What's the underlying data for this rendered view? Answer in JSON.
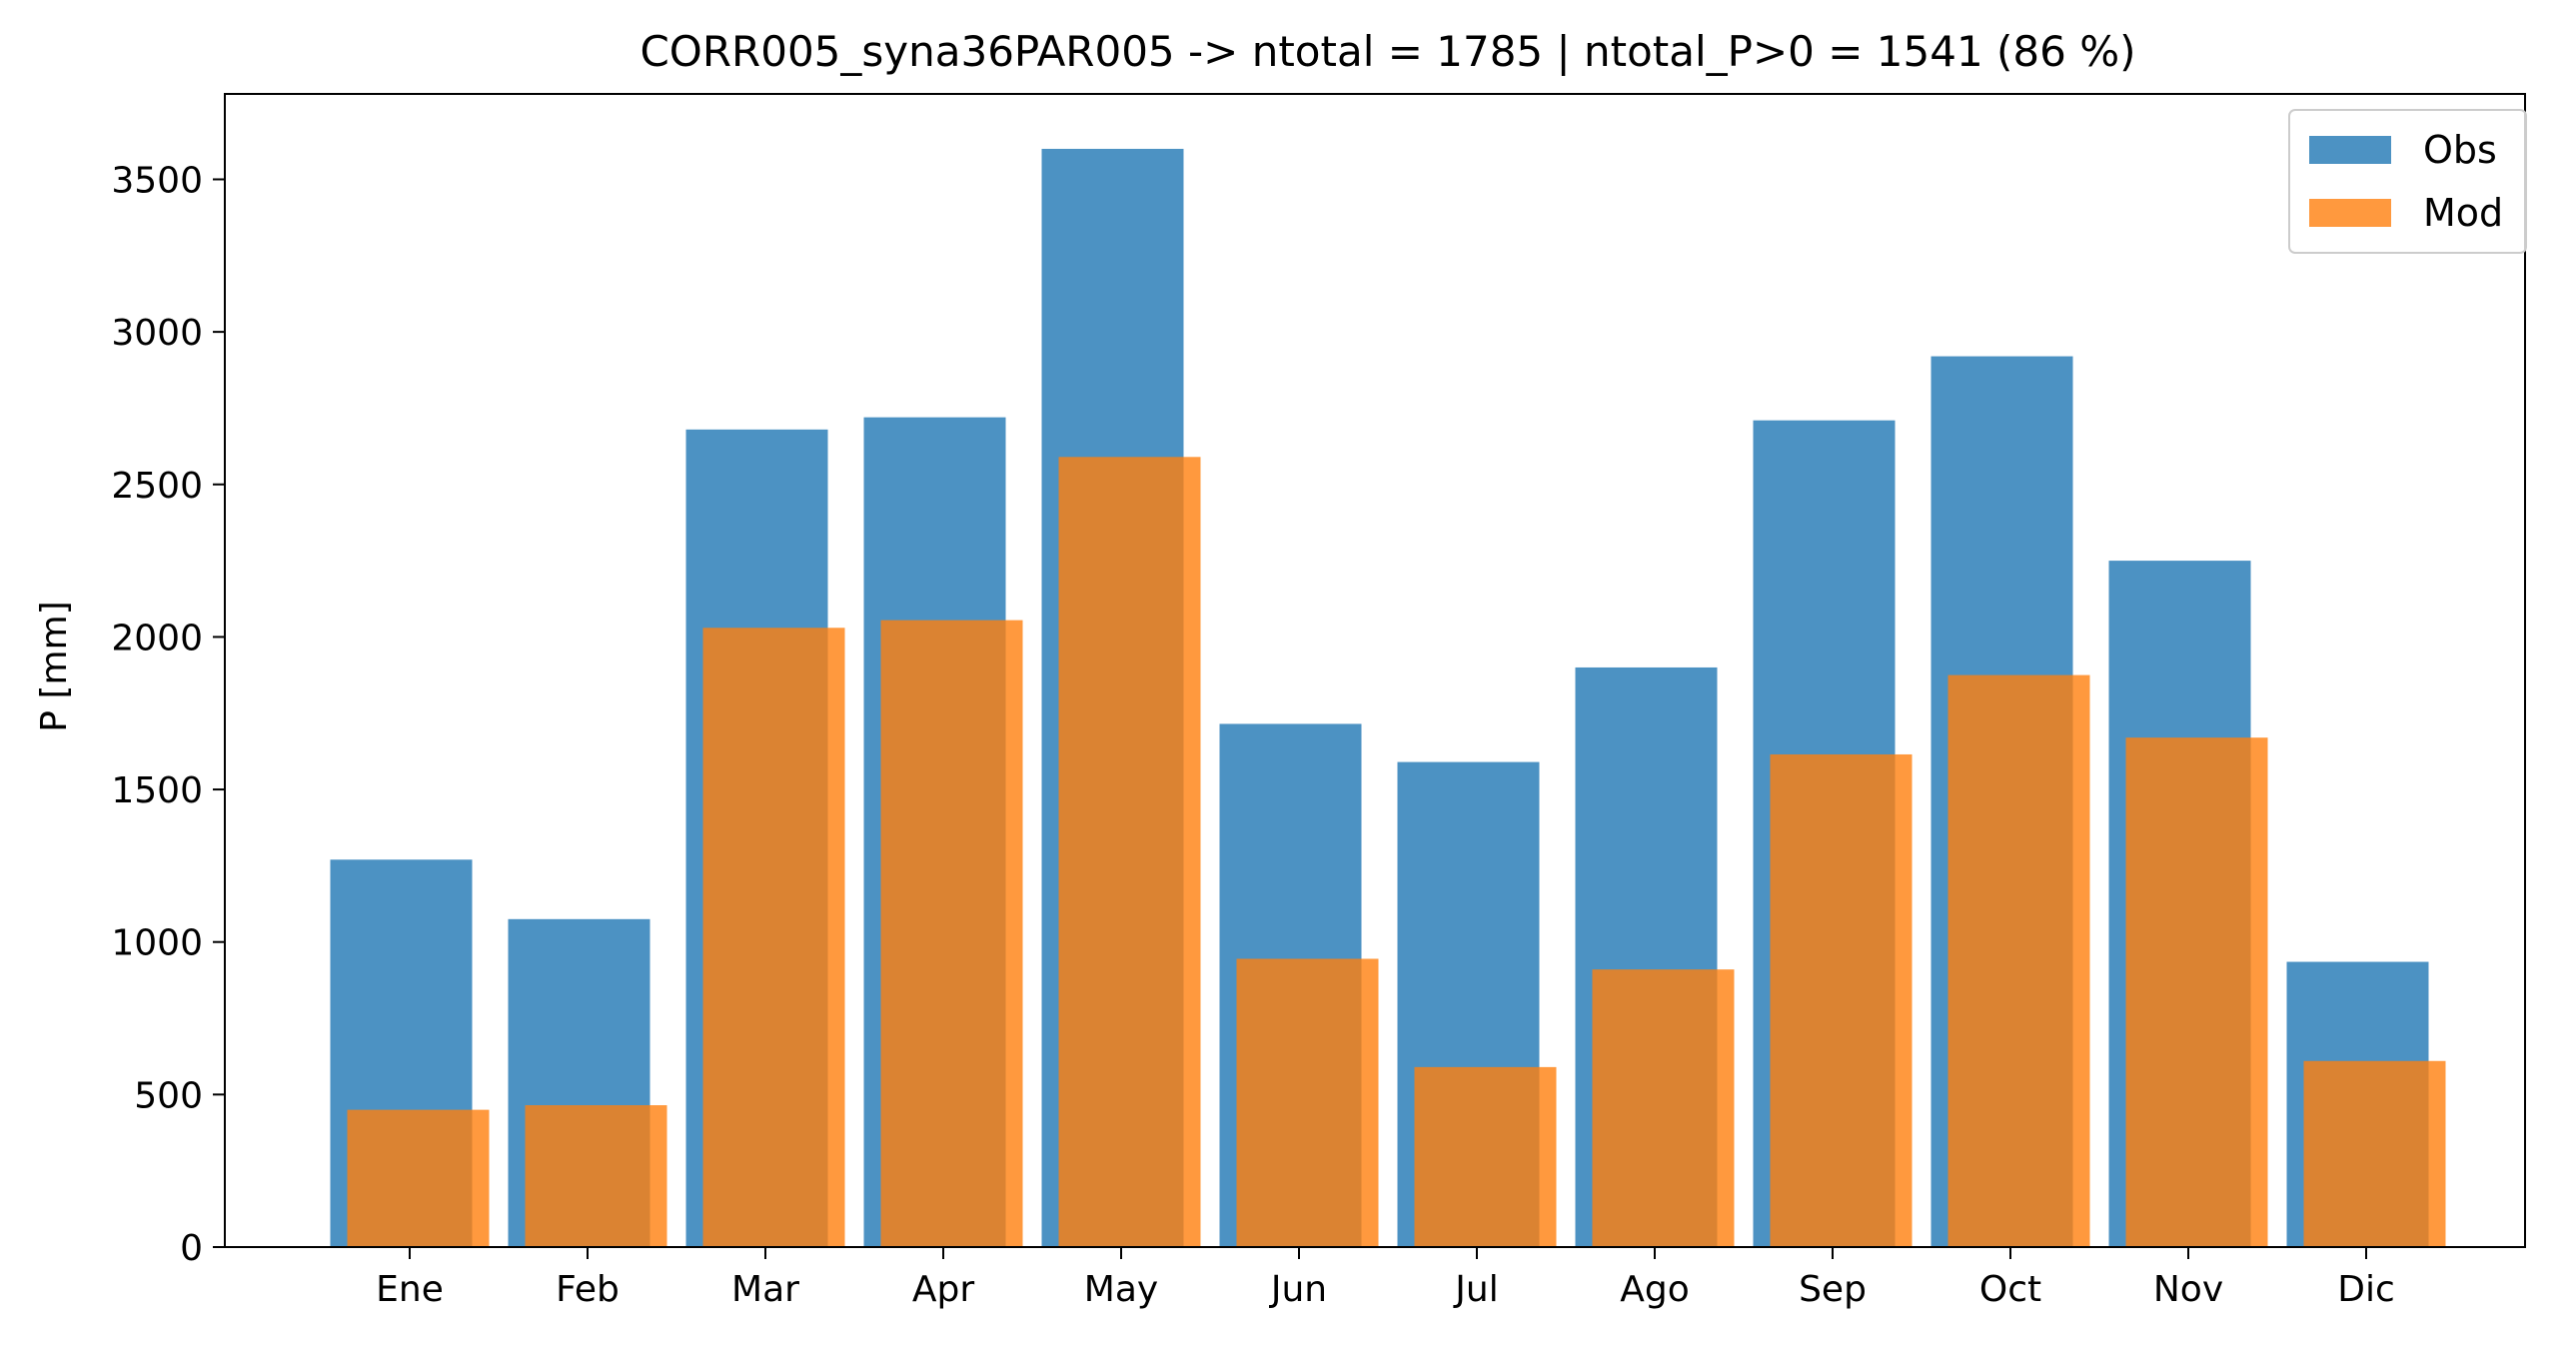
{
  "chart_data": {
    "type": "bar",
    "title": "CORR005_syna36PAR005 -> ntotal = 1785 | ntotal_P>0 = 1541 (86 %)",
    "xlabel": "",
    "ylabel": "P [mm]",
    "categories": [
      "Ene",
      "Feb",
      "Mar",
      "Apr",
      "May",
      "Jun",
      "Jul",
      "Ago",
      "Sep",
      "Oct",
      "Nov",
      "Dic"
    ],
    "series": [
      {
        "name": "Obs",
        "color": "#1f77b4",
        "values": [
          1270,
          1075,
          2680,
          2720,
          3600,
          1715,
          1590,
          1900,
          2710,
          2920,
          2250,
          935
        ]
      },
      {
        "name": "Mod",
        "color": "#ff7f0e",
        "values": [
          450,
          465,
          2030,
          2055,
          2590,
          945,
          590,
          910,
          1615,
          1875,
          1670,
          610
        ]
      }
    ],
    "ylim": [
      0,
      3780
    ],
    "yticks": [
      0,
      500,
      1000,
      1500,
      2000,
      2500,
      3000,
      3500
    ],
    "legend_position": "top-right",
    "grid": false
  }
}
